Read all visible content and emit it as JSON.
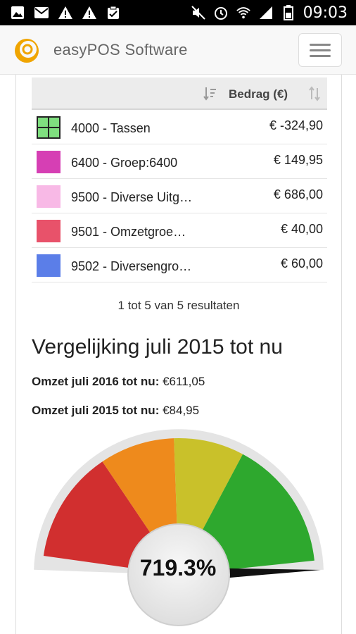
{
  "status_bar": {
    "time": "09:03",
    "left_icons": [
      "image-icon",
      "mail-icon",
      "warning-icon",
      "warning-icon",
      "clipboard-icon"
    ],
    "right_icons": [
      "mute-icon",
      "alarm-icon",
      "wifi-icon",
      "signal-icon",
      "battery-icon"
    ]
  },
  "header": {
    "app_name": "easyPOS Software",
    "logo_icon": "easypos-logo-icon",
    "menu_icon": "hamburger-menu-icon"
  },
  "table": {
    "column_header": "Bedrag (€)",
    "rows": [
      {
        "name": "4000 - Tassen",
        "amount": "€ -324,90",
        "color": "#7fdf7f",
        "pattern": "grid"
      },
      {
        "name": "6400 - Groep:6400",
        "amount": "€ 149,95",
        "color": "#d63fb4"
      },
      {
        "name": "9500 - Diverse Uitg…",
        "amount": "€ 686,00",
        "color": "#f8b9e6"
      },
      {
        "name": "9501 - Omzetgroe…",
        "amount": "€ 40,00",
        "color": "#e8526a"
      },
      {
        "name": "9502 - Diversengro…",
        "amount": "€ 60,00",
        "color": "#5b7ee8"
      }
    ],
    "results_text": "1 tot 5 van 5 resultaten"
  },
  "comparison": {
    "title": "Vergelijking juli 2015 tot nu",
    "stat_1_label": "Omzet juli 2016 tot nu:",
    "stat_1_value": "€611,05",
    "stat_2_label": "Omzet juli 2015 tot nu:",
    "stat_2_value": "€84,95"
  },
  "gauge": {
    "value_text": "719.3%",
    "value_percent": 719.3,
    "max_percent": 100,
    "segment_colors": [
      "#d12f2f",
      "#ee8a1c",
      "#c9c12a",
      "#2ea82e"
    ]
  }
}
